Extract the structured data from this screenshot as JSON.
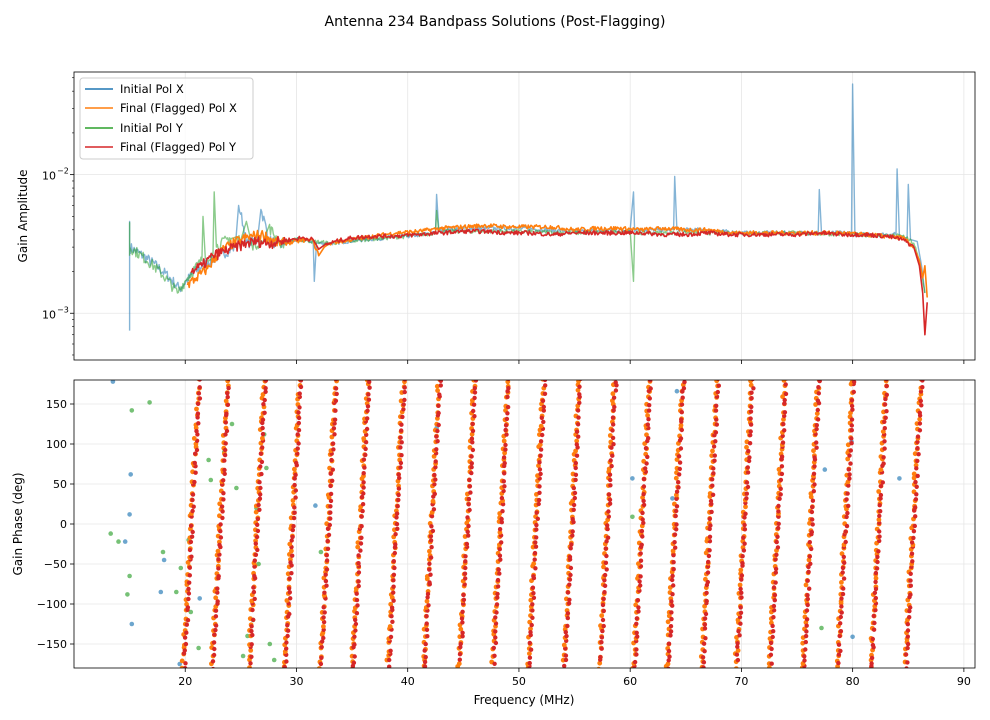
{
  "figure_title": "Antenna 234 Bandpass Solutions (Post-Flagging)",
  "colors": {
    "initial_x": "#1f77b4",
    "final_x": "#ff7f0e",
    "initial_y": "#2ca02c",
    "final_y": "#d62728"
  },
  "chart_data": [
    {
      "type": "line",
      "name": "amplitude",
      "title": "",
      "xlabel": "",
      "ylabel": "Gain Amplitude",
      "yscale": "log",
      "xlim": [
        10,
        91
      ],
      "ylim": [
        0.00046,
        0.055
      ],
      "grid": true,
      "legend_position": "upper-left",
      "x_ticks": [
        20,
        30,
        40,
        50,
        60,
        70,
        80,
        90
      ],
      "x_tick_labels_visible": false,
      "y_major_ticks": [
        0.001,
        0.01
      ],
      "y_major_tick_labels": [
        "10",
        "10"
      ],
      "y_major_tick_exponents": [
        "−3",
        "−2"
      ],
      "series": [
        {
          "name": "Initial Pol X",
          "x": [
            15.0,
            15.0,
            15.0,
            19.5,
            21.5,
            23,
            24.5,
            24.8,
            25.5,
            26.5,
            26.8,
            27.5,
            28.5,
            30,
            31.5,
            31.6,
            31.8,
            33,
            36,
            40,
            42.5,
            42.6,
            42.8,
            46,
            50,
            55,
            60,
            60.3,
            60.4,
            60.6,
            63.9,
            64.0,
            64.2,
            66,
            70,
            75,
            76.9,
            77.0,
            77.2,
            79.9,
            80.0,
            80.2,
            82,
            83.9,
            84.0,
            84.2,
            84.9,
            85.0,
            85.2,
            85.8,
            86.2,
            86.5
          ],
          "y": [
            0.00075,
            0.0046,
            0.003,
            0.0015,
            0.0022,
            0.0026,
            0.003,
            0.006,
            0.0032,
            0.0034,
            0.0056,
            0.0034,
            0.0031,
            0.0034,
            0.0033,
            0.0017,
            0.0032,
            0.0032,
            0.0034,
            0.0036,
            0.0038,
            0.0072,
            0.004,
            0.0041,
            0.0041,
            0.0039,
            0.004,
            0.0075,
            0.0039,
            0.004,
            0.004,
            0.0097,
            0.004,
            0.004,
            0.0038,
            0.0038,
            0.0038,
            0.0078,
            0.0038,
            0.0038,
            0.045,
            0.0037,
            0.0037,
            0.0037,
            0.011,
            0.0036,
            0.0035,
            0.0085,
            0.0034,
            0.0033,
            0.0022,
            0.0014
          ]
        },
        {
          "name": "Final (Flagged) Pol X",
          "x": [
            20.2,
            21,
            22,
            23,
            24,
            25,
            26,
            27,
            28,
            29,
            30,
            31,
            31.4,
            32,
            32.5,
            33,
            35,
            37,
            39,
            41,
            43,
            45,
            47,
            49,
            51,
            53,
            55,
            57,
            59,
            61,
            63,
            65,
            67,
            69,
            71,
            73,
            75,
            77,
            79,
            81,
            83,
            84.5,
            85.5,
            86,
            86.3,
            86.5,
            86.7
          ],
          "y": [
            0.0016,
            0.0018,
            0.0021,
            0.0027,
            0.0031,
            0.0034,
            0.0036,
            0.0037,
            0.0033,
            0.0032,
            0.0033,
            0.0034,
            0.0034,
            0.0026,
            0.003,
            0.0032,
            0.0034,
            0.0036,
            0.0038,
            0.0039,
            0.0041,
            0.0042,
            0.0043,
            0.0042,
            0.0042,
            0.0042,
            0.004,
            0.0041,
            0.0041,
            0.004,
            0.0041,
            0.004,
            0.004,
            0.0038,
            0.0038,
            0.0038,
            0.0038,
            0.0038,
            0.0038,
            0.0037,
            0.0036,
            0.0035,
            0.003,
            0.0024,
            0.0018,
            0.0022,
            0.0013
          ]
        },
        {
          "name": "Initial Pol Y",
          "x": [
            15.0,
            15.0,
            15.0,
            19.3,
            20.2,
            21.5,
            21.6,
            21.8,
            22.5,
            22.6,
            22.8,
            24,
            25,
            25.5,
            26,
            27,
            27.5,
            28.5,
            30,
            33,
            36,
            40,
            42.5,
            42.6,
            42.8,
            46,
            50,
            55,
            60,
            60.3,
            60.4,
            60.6,
            65,
            70,
            75,
            80,
            84.5,
            85.5,
            86.5
          ],
          "y": [
            0.0026,
            0.0045,
            0.003,
            0.0014,
            0.0018,
            0.0024,
            0.005,
            0.0025,
            0.0027,
            0.0075,
            0.003,
            0.0035,
            0.0034,
            0.0046,
            0.0031,
            0.0033,
            0.0042,
            0.0032,
            0.0034,
            0.0032,
            0.0034,
            0.0036,
            0.0038,
            0.0055,
            0.0039,
            0.0039,
            0.0039,
            0.0038,
            0.0039,
            0.0017,
            0.0038,
            0.0038,
            0.0038,
            0.0038,
            0.0038,
            0.0037,
            0.0036,
            0.0032,
            0.0014
          ]
        },
        {
          "name": "Final (Flagged) Pol Y",
          "x": [
            20.5,
            21.5,
            22.5,
            23.5,
            24.5,
            25.5,
            26.5,
            27.5,
            28.5,
            29.5,
            30.5,
            31.5,
            32,
            32.5,
            33.5,
            35,
            37,
            39,
            41,
            43,
            45,
            47,
            49,
            51,
            53,
            55,
            57,
            59,
            61,
            63,
            65,
            67,
            69,
            71,
            73,
            75,
            77,
            79,
            81,
            83,
            84.5,
            85.5,
            86,
            86.3,
            86.5,
            86.7
          ],
          "y": [
            0.002,
            0.0022,
            0.0026,
            0.0028,
            0.003,
            0.0032,
            0.0033,
            0.0032,
            0.0033,
            0.0034,
            0.0035,
            0.0034,
            0.0029,
            0.0031,
            0.0033,
            0.0035,
            0.0036,
            0.0036,
            0.0037,
            0.0038,
            0.0039,
            0.0039,
            0.0038,
            0.0038,
            0.0037,
            0.0038,
            0.0038,
            0.0038,
            0.0038,
            0.0037,
            0.0037,
            0.0038,
            0.0037,
            0.0037,
            0.0037,
            0.0037,
            0.0038,
            0.0037,
            0.0037,
            0.0036,
            0.0034,
            0.003,
            0.0022,
            0.0014,
            0.0007,
            0.0012
          ]
        }
      ],
      "legend": [
        "Initial Pol X",
        "Final (Flagged) Pol X",
        "Initial Pol Y",
        "Final (Flagged) Pol Y"
      ]
    },
    {
      "type": "scatter",
      "name": "phase",
      "title": "",
      "xlabel": "Frequency (MHz)",
      "ylabel": "Gain Phase (deg)",
      "xlim": [
        10,
        91
      ],
      "ylim": [
        -180,
        180
      ],
      "grid": true,
      "x_ticks": [
        20,
        30,
        40,
        50,
        60,
        70,
        80,
        90
      ],
      "x_tick_labels": [
        "20",
        "30",
        "40",
        "50",
        "60",
        "70",
        "80",
        "90"
      ],
      "y_ticks": [
        -150,
        -100,
        -50,
        0,
        50,
        100,
        150
      ],
      "y_tick_labels": [
        "−150",
        "−100",
        "−50",
        "0",
        "50",
        "100",
        "150"
      ],
      "phase_wrap": {
        "description": "Phase wraps from -180 to 180 deg; each wrap spans roughly 3.3 MHz",
        "wrap_start_freqs_mhz": [
          19.8,
          22.4,
          25.7,
          28.9,
          32.1,
          35.0,
          38.2,
          41.4,
          44.6,
          47.6,
          50.8,
          54.0,
          57.2,
          60.3,
          63.3,
          66.4,
          69.5,
          72.5,
          75.5,
          78.6,
          81.6,
          84.7
        ],
        "ramp_width_mhz": 1.4
      },
      "series": [
        {
          "name": "Initial Pol X",
          "points": [
            [
              13.5,
              178
            ],
            [
              14.6,
              -22
            ],
            [
              15.0,
              12
            ],
            [
              15.1,
              62
            ],
            [
              15.2,
              -125
            ],
            [
              17.8,
              -85
            ],
            [
              18.1,
              -45
            ],
            [
              19.5,
              -175
            ],
            [
              21.3,
              -93
            ],
            [
              31.7,
              23
            ],
            [
              42.6,
              120
            ],
            [
              60.2,
              57
            ],
            [
              63.8,
              32
            ],
            [
              64.2,
              166
            ],
            [
              77.5,
              68
            ],
            [
              79.9,
              103
            ],
            [
              80.0,
              -141
            ],
            [
              84.2,
              57
            ]
          ]
        },
        {
          "name": "Initial Pol Y",
          "points": [
            [
              13.3,
              -12
            ],
            [
              14.0,
              -22
            ],
            [
              14.8,
              -88
            ],
            [
              15.0,
              -65
            ],
            [
              15.2,
              142
            ],
            [
              16.8,
              152
            ],
            [
              18.0,
              -35
            ],
            [
              19.2,
              -85
            ],
            [
              19.6,
              -55
            ],
            [
              20.3,
              -20
            ],
            [
              20.5,
              -110
            ],
            [
              21.2,
              -155
            ],
            [
              22.1,
              80
            ],
            [
              22.3,
              55
            ],
            [
              23.5,
              90
            ],
            [
              24.2,
              125
            ],
            [
              24.6,
              45
            ],
            [
              25.2,
              -165
            ],
            [
              25.6,
              -140
            ],
            [
              26.1,
              -120
            ],
            [
              26.4,
              20
            ],
            [
              26.6,
              -50
            ],
            [
              27.1,
              112
            ],
            [
              27.3,
              70
            ],
            [
              27.6,
              -150
            ],
            [
              28.0,
              -170
            ],
            [
              32.2,
              -35
            ],
            [
              60.2,
              9
            ],
            [
              77.2,
              -130
            ]
          ]
        }
      ],
      "legend": []
    }
  ]
}
